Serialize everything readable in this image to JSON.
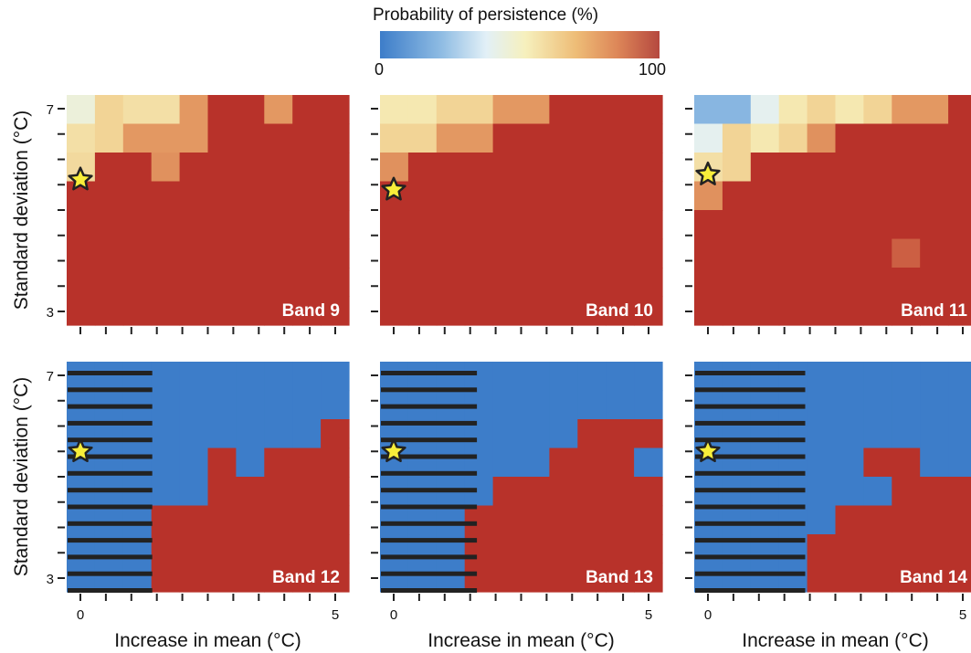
{
  "legend": {
    "title": "Probability of persistence (%)",
    "min_label": "0",
    "max_label": "100"
  },
  "colors": {
    "low": "#3d7dc9",
    "mid": "#e2f0f7",
    "high": "#b8322a",
    "star": "#f8ee3a",
    "star_outline": "#222222"
  },
  "chart_data": {
    "type": "heatmap",
    "xlabel": "Increase in mean (°C)",
    "ylabel": "Standard deviation (°C)",
    "xlim": [
      0,
      5
    ],
    "ylim": [
      3,
      7
    ],
    "x_ticks": [
      "0",
      "5"
    ],
    "y_ticks": [
      "3",
      "7"
    ],
    "value_range": [
      0,
      100
    ],
    "grid_x": [
      0,
      0.5,
      1,
      1.5,
      2,
      2.5,
      3,
      3.5,
      4,
      4.5,
      5
    ],
    "grid_y": [
      7,
      6.5,
      6,
      5.5,
      5,
      4.5,
      4,
      3.5,
      3
    ],
    "panels": [
      {
        "label": "Band 9",
        "star": [
          0,
          5.6
        ],
        "rows": [
          [
            45,
            62,
            58,
            58,
            80,
            100,
            100,
            80,
            100,
            100
          ],
          [
            58,
            62,
            80,
            80,
            80,
            100,
            100,
            100,
            100,
            100
          ],
          [
            60,
            100,
            100,
            82,
            100,
            100,
            100,
            100,
            100,
            100
          ],
          [
            100,
            100,
            100,
            100,
            100,
            100,
            100,
            100,
            100,
            100
          ],
          [
            100,
            100,
            100,
            100,
            100,
            100,
            100,
            100,
            100,
            100
          ],
          [
            100,
            100,
            100,
            100,
            100,
            100,
            100,
            100,
            100,
            100
          ],
          [
            100,
            100,
            100,
            100,
            100,
            100,
            100,
            100,
            100,
            100
          ],
          [
            100,
            100,
            100,
            100,
            100,
            100,
            100,
            100,
            100,
            100
          ]
        ]
      },
      {
        "label": "Band 10",
        "star": [
          0,
          5.4
        ],
        "rows": [
          [
            55,
            55,
            62,
            62,
            80,
            80,
            100,
            100,
            100,
            100
          ],
          [
            62,
            62,
            80,
            80,
            100,
            100,
            100,
            100,
            100,
            100
          ],
          [
            82,
            100,
            100,
            100,
            100,
            100,
            100,
            100,
            100,
            100
          ],
          [
            100,
            100,
            100,
            100,
            100,
            100,
            100,
            100,
            100,
            100
          ],
          [
            100,
            100,
            100,
            100,
            100,
            100,
            100,
            100,
            100,
            100
          ],
          [
            100,
            100,
            100,
            100,
            100,
            100,
            100,
            100,
            100,
            100
          ],
          [
            100,
            100,
            100,
            100,
            100,
            100,
            100,
            100,
            100,
            100
          ],
          [
            100,
            100,
            100,
            100,
            100,
            100,
            100,
            100,
            100,
            100
          ]
        ]
      },
      {
        "label": "Band 11",
        "star": [
          0,
          5.7
        ],
        "rows": [
          [
            20,
            20,
            40,
            55,
            62,
            55,
            62,
            80,
            80,
            100
          ],
          [
            40,
            62,
            55,
            62,
            82,
            100,
            100,
            100,
            100,
            100
          ],
          [
            58,
            62,
            100,
            100,
            100,
            100,
            100,
            100,
            100,
            100
          ],
          [
            82,
            100,
            100,
            100,
            100,
            100,
            100,
            100,
            100,
            100
          ],
          [
            100,
            100,
            100,
            100,
            100,
            100,
            100,
            100,
            100,
            100
          ],
          [
            100,
            100,
            100,
            100,
            100,
            100,
            100,
            92,
            100,
            100
          ],
          [
            100,
            100,
            100,
            100,
            100,
            100,
            100,
            100,
            100,
            100
          ],
          [
            100,
            100,
            100,
            100,
            100,
            100,
            100,
            100,
            100,
            100
          ]
        ]
      },
      {
        "label": "Band 12",
        "star": [
          0,
          5.5
        ],
        "rows": [
          [
            0,
            0,
            0,
            0,
            0,
            0,
            0,
            0,
            0,
            0
          ],
          [
            0,
            0,
            0,
            0,
            0,
            0,
            0,
            0,
            0,
            0
          ],
          [
            0,
            0,
            0,
            0,
            0,
            0,
            0,
            0,
            0,
            100
          ],
          [
            0,
            0,
            0,
            0,
            0,
            100,
            0,
            100,
            100,
            100
          ],
          [
            0,
            0,
            0,
            0,
            0,
            100,
            100,
            100,
            100,
            100
          ],
          [
            0,
            0,
            0,
            100,
            100,
            100,
            100,
            100,
            100,
            100
          ],
          [
            0,
            0,
            0,
            100,
            100,
            100,
            100,
            100,
            100,
            100
          ],
          [
            0,
            0,
            0,
            100,
            100,
            100,
            100,
            100,
            100,
            100
          ]
        ]
      },
      {
        "label": "Band 13",
        "star": [
          0,
          5.5
        ],
        "rows": [
          [
            0,
            0,
            0,
            0,
            0,
            0,
            0,
            0,
            0,
            0
          ],
          [
            0,
            0,
            0,
            0,
            0,
            0,
            0,
            0,
            0,
            0
          ],
          [
            0,
            0,
            0,
            0,
            0,
            0,
            0,
            100,
            100,
            100
          ],
          [
            0,
            0,
            0,
            0,
            0,
            0,
            100,
            100,
            100,
            0
          ],
          [
            0,
            0,
            0,
            0,
            100,
            100,
            100,
            100,
            100,
            100
          ],
          [
            0,
            0,
            0,
            100,
            100,
            100,
            100,
            100,
            100,
            100
          ],
          [
            0,
            0,
            0,
            100,
            100,
            100,
            100,
            100,
            100,
            100
          ],
          [
            0,
            0,
            0,
            100,
            100,
            100,
            100,
            100,
            100,
            100
          ]
        ]
      },
      {
        "label": "Band 14",
        "star": [
          0,
          5.5
        ],
        "rows": [
          [
            0,
            0,
            0,
            0,
            0,
            0,
            0,
            0,
            0,
            0
          ],
          [
            0,
            0,
            0,
            0,
            0,
            0,
            0,
            0,
            0,
            0
          ],
          [
            0,
            0,
            0,
            0,
            0,
            0,
            0,
            0,
            0,
            0
          ],
          [
            0,
            0,
            0,
            0,
            0,
            0,
            100,
            100,
            0,
            0
          ],
          [
            0,
            0,
            0,
            0,
            0,
            0,
            0,
            100,
            100,
            100
          ],
          [
            0,
            0,
            0,
            0,
            0,
            100,
            100,
            100,
            100,
            100
          ],
          [
            0,
            0,
            0,
            0,
            100,
            100,
            100,
            100,
            100,
            100
          ],
          [
            0,
            0,
            0,
            0,
            100,
            100,
            100,
            100,
            100,
            100
          ]
        ]
      }
    ]
  }
}
